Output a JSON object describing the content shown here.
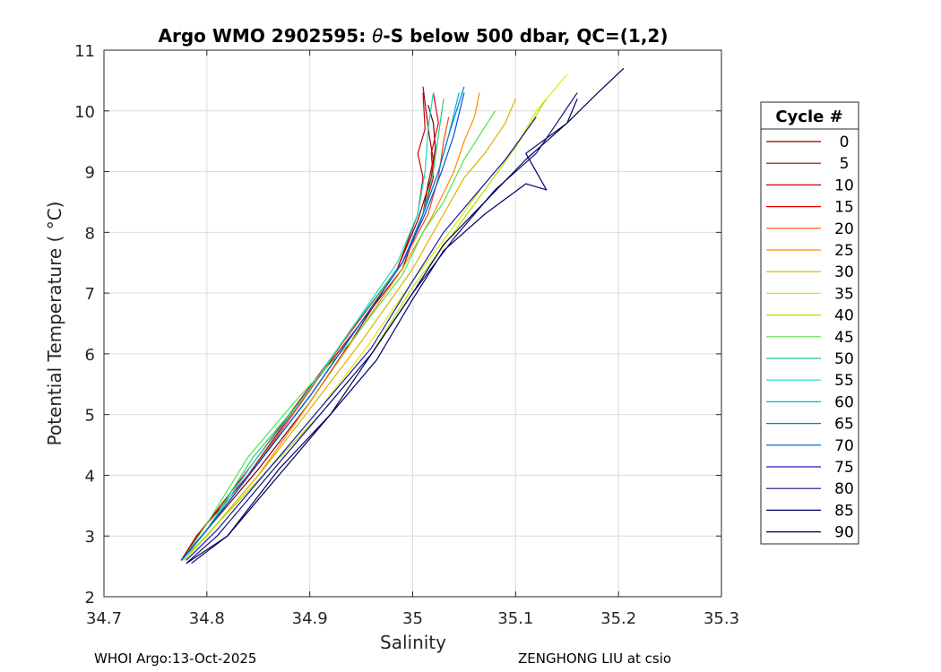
{
  "chart_data": {
    "type": "line",
    "title": "Argo WMO 2902595: θ-S below 500 dbar,  QC=(1,2)",
    "title_parts": {
      "prefix": "Argo WMO 2902595: ",
      "theta": "θ",
      "suffix": "-S below 500 dbar,  QC=(1,2)"
    },
    "xlabel": "Salinity",
    "ylabel": "Potential Temperature ( °C)",
    "xlim": [
      34.7,
      35.3
    ],
    "ylim": [
      2,
      11
    ],
    "xticks": [
      "34.7",
      "34.8",
      "34.9",
      "35",
      "35.1",
      "35.2",
      "35.3"
    ],
    "yticks": [
      "2",
      "3",
      "4",
      "5",
      "6",
      "7",
      "8",
      "9",
      "10",
      "11"
    ],
    "grid": true,
    "legend_position": "outside-right",
    "legend_title": "Cycle #",
    "legend_entries": [
      "0",
      "5",
      "10",
      "15",
      "20",
      "25",
      "30",
      "35",
      "40",
      "45",
      "50",
      "55",
      "60",
      "65",
      "70",
      "75",
      "80",
      "85",
      "90"
    ],
    "legend_colors": [
      "#7f0000",
      "#a30000",
      "#c80000",
      "#ec0000",
      "#ff4500",
      "#ff8c00",
      "#d9b300",
      "#e6e600",
      "#a6e600",
      "#4de64d",
      "#26cc80",
      "#1ad9c0",
      "#00b0e0",
      "#0080d0",
      "#0050e0",
      "#1a1ab0",
      "#101080",
      "#000070",
      "#00004d"
    ],
    "series": [
      {
        "name": "0",
        "color": "#7f0000",
        "x": [
          34.776,
          34.8,
          34.85,
          34.9,
          34.94,
          34.985,
          35.005,
          35.018,
          35.022,
          35.02,
          35.015
        ],
        "y": [
          2.6,
          3.1,
          4.1,
          5.2,
          6.2,
          7.4,
          8.2,
          8.9,
          9.4,
          9.8,
          10.1
        ]
      },
      {
        "name": "5",
        "color": "#a30000",
        "x": [
          34.775,
          34.79,
          34.84,
          34.89,
          34.94,
          34.99,
          35.01,
          35.015,
          35.02,
          35.016,
          35.013,
          35.01
        ],
        "y": [
          2.6,
          3.0,
          4.0,
          5.2,
          6.3,
          7.4,
          8.3,
          8.8,
          9.2,
          9.6,
          10.0,
          10.4
        ]
      },
      {
        "name": "10",
        "color": "#c80000",
        "x": [
          34.775,
          34.795,
          34.845,
          34.893,
          34.937,
          34.985,
          35.005,
          35.01,
          35.005,
          35.012,
          35.01
        ],
        "y": [
          2.6,
          3.1,
          4.2,
          5.3,
          6.3,
          7.4,
          8.3,
          8.9,
          9.3,
          9.7,
          10.3
        ]
      },
      {
        "name": "15",
        "color": "#ec0000",
        "x": [
          34.775,
          34.8,
          34.85,
          34.9,
          34.94,
          34.99,
          35.01,
          35.02,
          35.018,
          35.025,
          35.02
        ],
        "y": [
          2.6,
          3.1,
          4.2,
          5.4,
          6.4,
          7.5,
          8.3,
          8.9,
          9.3,
          9.8,
          10.3
        ]
      },
      {
        "name": "20",
        "color": "#ff4500",
        "x": [
          34.775,
          34.8,
          34.85,
          34.9,
          34.945,
          34.99,
          35.015,
          35.025,
          35.03,
          35.035
        ],
        "y": [
          2.6,
          3.1,
          4.2,
          5.4,
          6.5,
          7.5,
          8.3,
          8.9,
          9.5,
          9.9
        ]
      },
      {
        "name": "25",
        "color": "#ff8c00",
        "x": [
          34.775,
          34.8,
          34.85,
          34.9,
          34.945,
          34.99,
          35.02,
          35.04,
          35.05,
          35.06,
          35.065
        ],
        "y": [
          2.6,
          3.0,
          4.0,
          5.2,
          6.3,
          7.4,
          8.3,
          9.0,
          9.5,
          9.9,
          10.3
        ]
      },
      {
        "name": "30",
        "color": "#d9b300",
        "x": [
          34.778,
          34.805,
          34.855,
          34.905,
          34.95,
          35.0,
          35.03,
          35.05,
          35.07,
          35.09,
          35.1
        ],
        "y": [
          2.6,
          3.1,
          4.1,
          5.2,
          6.2,
          7.4,
          8.3,
          8.9,
          9.3,
          9.8,
          10.2
        ]
      },
      {
        "name": "35",
        "color": "#e6e600",
        "x": [
          34.778,
          34.81,
          34.86,
          34.91,
          34.955,
          35.0,
          35.04,
          35.07,
          35.1,
          35.12,
          35.15
        ],
        "y": [
          2.6,
          3.2,
          4.1,
          5.1,
          6.1,
          7.2,
          8.1,
          8.8,
          9.4,
          10.0,
          10.6
        ]
      },
      {
        "name": "40",
        "color": "#a6e600",
        "x": [
          34.778,
          34.81,
          34.86,
          34.91,
          34.96,
          35.0,
          35.04,
          35.07,
          35.1,
          35.13
        ],
        "y": [
          2.6,
          3.2,
          4.1,
          5.0,
          6.0,
          7.1,
          8.0,
          8.7,
          9.4,
          10.2
        ]
      },
      {
        "name": "45",
        "color": "#4de64d",
        "x": [
          34.776,
          34.8,
          34.84,
          34.89,
          34.94,
          34.99,
          35.01,
          35.03,
          35.05,
          35.08
        ],
        "y": [
          2.6,
          3.2,
          4.3,
          5.3,
          6.2,
          7.3,
          8.0,
          8.5,
          9.2,
          10.0
        ]
      },
      {
        "name": "50",
        "color": "#26cc80",
        "x": [
          34.776,
          34.8,
          34.845,
          34.895,
          34.94,
          34.99,
          35.01,
          35.02,
          35.025,
          35.03
        ],
        "y": [
          2.6,
          3.1,
          4.3,
          5.3,
          6.4,
          7.5,
          8.3,
          9.0,
          9.6,
          10.2
        ]
      },
      {
        "name": "55",
        "color": "#1ad9c0",
        "x": [
          34.776,
          34.8,
          34.845,
          34.895,
          34.94,
          34.985,
          35.005,
          35.012,
          35.015,
          35.02
        ],
        "y": [
          2.6,
          3.1,
          4.2,
          5.3,
          6.4,
          7.5,
          8.3,
          9.0,
          9.7,
          10.3
        ]
      },
      {
        "name": "60",
        "color": "#00b0e0",
        "x": [
          34.775,
          34.8,
          34.85,
          34.9,
          34.945,
          34.99,
          35.01,
          35.025,
          35.035,
          35.045
        ],
        "y": [
          2.6,
          3.1,
          4.2,
          5.3,
          6.4,
          7.5,
          8.3,
          9.0,
          9.6,
          10.3
        ]
      },
      {
        "name": "65",
        "color": "#0080d0",
        "x": [
          34.775,
          34.8,
          34.85,
          34.9,
          34.945,
          34.99,
          35.01,
          35.025,
          35.035,
          35.05
        ],
        "y": [
          2.6,
          3.1,
          4.2,
          5.3,
          6.4,
          7.5,
          8.3,
          9.0,
          9.6,
          10.4
        ]
      },
      {
        "name": "70",
        "color": "#0050e0",
        "x": [
          34.775,
          34.8,
          34.85,
          34.9,
          34.945,
          34.99,
          35.012,
          35.028,
          35.04,
          35.05
        ],
        "y": [
          2.6,
          3.1,
          4.2,
          5.3,
          6.4,
          7.5,
          8.3,
          9.0,
          9.6,
          10.3
        ]
      },
      {
        "name": "75",
        "color": "#1a1ab0",
        "x": [
          34.78,
          34.81,
          34.86,
          34.91,
          34.96,
          35.0,
          35.03,
          35.06,
          35.09,
          35.12
        ],
        "y": [
          2.6,
          3.1,
          4.1,
          5.1,
          6.1,
          7.2,
          8.0,
          8.6,
          9.2,
          9.9
        ]
      },
      {
        "name": "80",
        "color": "#101080",
        "x": [
          34.78,
          34.81,
          34.86,
          34.91,
          34.96,
          35.0,
          35.04,
          35.08,
          35.12,
          35.14,
          35.16
        ],
        "y": [
          2.55,
          3.0,
          4.0,
          5.0,
          6.0,
          7.0,
          7.9,
          8.7,
          9.3,
          9.8,
          10.3
        ]
      },
      {
        "name": "85",
        "color": "#000070",
        "x": [
          34.785,
          34.82,
          34.87,
          34.92,
          34.965,
          35.0,
          35.03,
          35.07,
          35.11,
          35.13,
          35.11,
          35.15,
          35.16
        ],
        "y": [
          2.55,
          3.0,
          4.1,
          5.0,
          5.9,
          6.9,
          7.7,
          8.3,
          8.8,
          8.7,
          9.3,
          9.8,
          10.2
        ]
      },
      {
        "name": "90",
        "color": "#00004d",
        "x": [
          34.78,
          34.82,
          34.87,
          34.92,
          34.96,
          35.0,
          35.03,
          35.07,
          35.11,
          35.15,
          35.18,
          35.205
        ],
        "y": [
          2.55,
          3.0,
          4.0,
          5.0,
          6.0,
          7.0,
          7.8,
          8.5,
          9.2,
          9.8,
          10.3,
          10.7
        ]
      }
    ]
  },
  "footer": {
    "left": "WHOI Argo:13-Oct-2025",
    "right": "ZENGHONG LIU at csio"
  }
}
